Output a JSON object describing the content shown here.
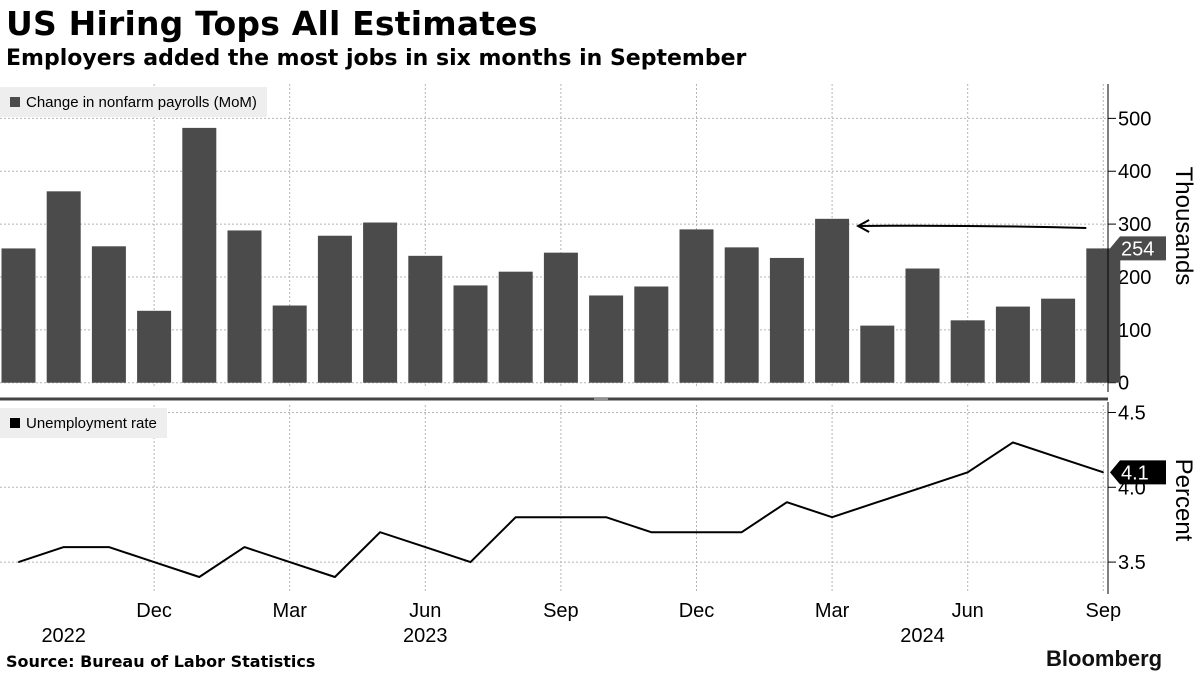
{
  "title": "US Hiring Tops All Estimates",
  "subtitle": "Employers added the most jobs in six months in September",
  "source": "Source: Bureau of Labor Statistics",
  "brand": "Bloomberg",
  "colors": {
    "bar": "#4b4b4b",
    "line": "#000000",
    "grid": "#b5b5b5",
    "legend_bg": "#eeeeee"
  },
  "chart_data": [
    {
      "type": "bar",
      "legend": "Change in nonfarm payrolls (MoM)",
      "ylabel": "Thousands",
      "ylim": [
        -10,
        565
      ],
      "yticks": [
        0,
        100,
        200,
        300,
        400,
        500
      ],
      "latest_label": "254",
      "x": [
        "2022-09",
        "2022-10",
        "2022-11",
        "2022-12",
        "2023-01",
        "2023-02",
        "2023-03",
        "2023-04",
        "2023-05",
        "2023-06",
        "2023-07",
        "2023-08",
        "2023-09",
        "2023-10",
        "2023-11",
        "2023-12",
        "2024-01",
        "2024-02",
        "2024-03",
        "2024-04",
        "2024-05",
        "2024-06",
        "2024-07",
        "2024-08",
        "2024-09"
      ],
      "values": [
        254,
        362,
        258,
        136,
        482,
        288,
        146,
        278,
        303,
        240,
        184,
        210,
        246,
        165,
        182,
        290,
        256,
        236,
        310,
        108,
        216,
        118,
        144,
        159,
        254
      ],
      "annotation": "arrow pointing from September 2024 back to March 2024"
    },
    {
      "type": "line",
      "legend": "Unemployment rate",
      "ylabel": "Percent",
      "ylim": [
        3.3,
        4.55
      ],
      "yticks": [
        3.5,
        4.0,
        4.5
      ],
      "latest_label": "4.1",
      "x": [
        "2022-09",
        "2022-10",
        "2022-11",
        "2022-12",
        "2023-01",
        "2023-02",
        "2023-03",
        "2023-04",
        "2023-05",
        "2023-06",
        "2023-07",
        "2023-08",
        "2023-09",
        "2023-10",
        "2023-11",
        "2023-12",
        "2024-01",
        "2024-02",
        "2024-03",
        "2024-04",
        "2024-05",
        "2024-06",
        "2024-07",
        "2024-08",
        "2024-09"
      ],
      "values": [
        3.5,
        3.6,
        3.6,
        3.5,
        3.4,
        3.6,
        3.5,
        3.4,
        3.7,
        3.6,
        3.5,
        3.8,
        3.8,
        3.8,
        3.7,
        3.7,
        3.7,
        3.9,
        3.8,
        3.9,
        4.0,
        4.1,
        4.3,
        4.2,
        4.1
      ]
    }
  ],
  "x_tick_labels": [
    {
      "month": "Dec",
      "x": "2022-12"
    },
    {
      "month": "Mar",
      "x": "2023-03"
    },
    {
      "month": "Jun",
      "x": "2023-06"
    },
    {
      "month": "Sep",
      "x": "2023-09"
    },
    {
      "month": "Dec",
      "x": "2023-12"
    },
    {
      "month": "Mar",
      "x": "2024-03"
    },
    {
      "month": "Jun",
      "x": "2024-06"
    },
    {
      "month": "Sep",
      "x": "2024-09"
    }
  ],
  "year_labels": [
    {
      "year": "2022",
      "x": "2022-10"
    },
    {
      "year": "2023",
      "x": "2023-06"
    },
    {
      "year": "2024",
      "x": "2024-05"
    }
  ]
}
